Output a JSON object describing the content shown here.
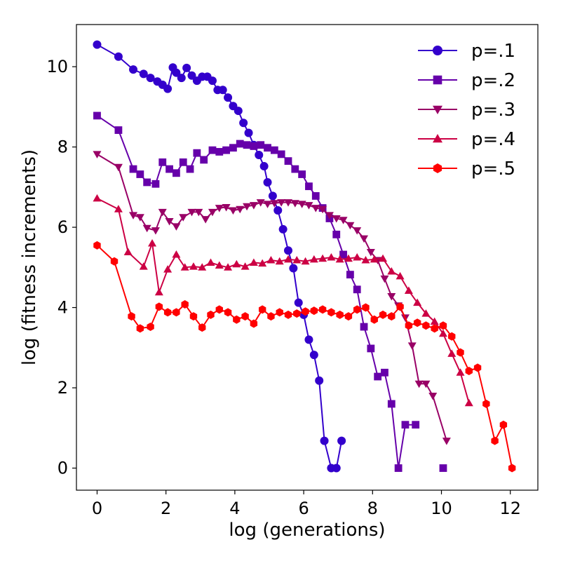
{
  "chart_data": {
    "type": "line",
    "xlabel": "log (generations)",
    "ylabel": "log (fitness increments)",
    "xlim": [
      -0.6,
      12.8
    ],
    "ylim": [
      -0.55,
      11.05
    ],
    "xticks": [
      0,
      2,
      4,
      6,
      8,
      10,
      12
    ],
    "yticks": [
      0,
      2,
      4,
      6,
      8,
      10
    ],
    "grid": false,
    "legend_position": "top-right",
    "series": [
      {
        "name": "p=.1",
        "color": "#3300cc",
        "marker": "circle",
        "x": [
          0,
          0.62,
          1.05,
          1.35,
          1.55,
          1.75,
          1.9,
          2.05,
          2.2,
          2.3,
          2.45,
          2.6,
          2.75,
          2.9,
          3.05,
          3.2,
          3.35,
          3.5,
          3.65,
          3.8,
          3.95,
          4.1,
          4.25,
          4.4,
          4.55,
          4.7,
          4.85,
          4.95,
          5.1,
          5.25,
          5.4,
          5.55,
          5.7,
          5.85,
          6.0,
          6.15,
          6.3,
          6.45,
          6.6,
          6.8,
          6.95,
          7.1,
          7.25
        ],
        "y": [
          10.55,
          10.25,
          9.93,
          9.82,
          9.72,
          9.63,
          9.55,
          9.45,
          9.98,
          9.85,
          9.72,
          9.97,
          9.78,
          9.65,
          9.75,
          9.75,
          9.65,
          9.42,
          9.42,
          9.23,
          9.02,
          8.9,
          8.6,
          8.35,
          8.05,
          7.8,
          7.52,
          7.12,
          6.78,
          6.42,
          5.95,
          5.42,
          4.98,
          4.12,
          3.82,
          3.2,
          2.82,
          2.18,
          0.68,
          0.0,
          0.0,
          0.68,
          null
        ],
        "note": ""
      },
      {
        "name": "p=.2",
        "color": "#6600aa",
        "marker": "square",
        "x": [
          0,
          0.62,
          1.05,
          1.25,
          1.45,
          1.7,
          1.9,
          2.1,
          2.3,
          2.5,
          2.7,
          2.9,
          3.1,
          3.35,
          3.55,
          3.75,
          3.95,
          4.15,
          4.35,
          4.55,
          4.75,
          4.95,
          5.15,
          5.35,
          5.55,
          5.75,
          5.95,
          6.15,
          6.35,
          6.55,
          6.75,
          6.95,
          7.15,
          7.35,
          7.55,
          7.75,
          7.95,
          8.15,
          8.35,
          8.55,
          8.75,
          8.95,
          9.25,
          9.45,
          9.65,
          9.85,
          10.05
        ],
        "y": [
          8.78,
          8.42,
          7.45,
          7.32,
          7.12,
          7.08,
          7.62,
          7.45,
          7.35,
          7.62,
          7.45,
          7.85,
          7.68,
          7.92,
          7.88,
          7.92,
          7.98,
          8.08,
          8.05,
          8.02,
          8.05,
          7.98,
          7.92,
          7.82,
          7.65,
          7.45,
          7.32,
          7.02,
          6.78,
          6.48,
          6.22,
          5.82,
          5.32,
          4.82,
          4.45,
          3.52,
          2.98,
          2.28,
          2.38,
          1.6,
          0.0,
          1.08,
          1.08,
          null,
          null,
          null,
          0.0
        ],
        "note": ""
      },
      {
        "name": "p=.3",
        "color": "#990066",
        "marker": "triangle-down",
        "x": [
          0,
          0.62,
          1.05,
          1.25,
          1.45,
          1.7,
          1.9,
          2.1,
          2.3,
          2.5,
          2.75,
          2.95,
          3.15,
          3.35,
          3.55,
          3.75,
          3.95,
          4.15,
          4.35,
          4.55,
          4.75,
          4.95,
          5.15,
          5.35,
          5.55,
          5.75,
          5.95,
          6.15,
          6.35,
          6.55,
          6.75,
          6.95,
          7.15,
          7.35,
          7.55,
          7.75,
          7.95,
          8.15,
          8.35,
          8.55,
          8.75,
          8.95,
          9.15,
          9.35,
          9.55,
          9.75,
          10.15
        ],
        "y": [
          7.82,
          7.5,
          6.3,
          6.25,
          5.98,
          5.92,
          6.38,
          6.15,
          6.02,
          6.25,
          6.38,
          6.38,
          6.2,
          6.38,
          6.48,
          6.5,
          6.42,
          6.45,
          6.52,
          6.55,
          6.62,
          6.58,
          6.6,
          6.62,
          6.62,
          6.6,
          6.58,
          6.55,
          6.48,
          6.45,
          6.3,
          6.22,
          6.18,
          6.05,
          5.92,
          5.72,
          5.38,
          5.18,
          4.72,
          4.28,
          4.05,
          3.75,
          3.05,
          2.1,
          2.1,
          1.8,
          0.68
        ],
        "note": ""
      },
      {
        "name": "p=.4",
        "color": "#cc0044",
        "marker": "triangle-up",
        "x": [
          0,
          0.62,
          0.9,
          1.35,
          1.6,
          1.8,
          2.05,
          2.3,
          2.55,
          2.8,
          3.05,
          3.3,
          3.55,
          3.8,
          4.05,
          4.3,
          4.55,
          4.8,
          5.05,
          5.3,
          5.55,
          5.8,
          6.05,
          6.3,
          6.55,
          6.8,
          7.05,
          7.3,
          7.55,
          7.8,
          8.05,
          8.3,
          8.55,
          8.8,
          9.05,
          9.3,
          9.55,
          9.8,
          10.05,
          10.3,
          10.55,
          10.8
        ],
        "y": [
          6.72,
          6.45,
          5.38,
          5.02,
          5.6,
          4.38,
          4.95,
          5.32,
          5.0,
          5.02,
          5.0,
          5.12,
          5.05,
          5.0,
          5.08,
          5.02,
          5.12,
          5.1,
          5.18,
          5.15,
          5.2,
          5.18,
          5.15,
          5.2,
          5.22,
          5.25,
          5.2,
          5.22,
          5.25,
          5.18,
          5.2,
          5.22,
          4.9,
          4.78,
          4.42,
          4.12,
          3.85,
          3.65,
          3.35,
          2.85,
          2.38,
          1.62
        ],
        "note": ""
      },
      {
        "name": "p=.5",
        "color": "#ff0000",
        "marker": "hexagon",
        "x": [
          0,
          0.5,
          1.0,
          1.25,
          1.55,
          1.8,
          2.05,
          2.3,
          2.55,
          2.8,
          3.05,
          3.3,
          3.55,
          3.8,
          4.05,
          4.3,
          4.55,
          4.8,
          5.05,
          5.3,
          5.55,
          5.8,
          6.05,
          6.3,
          6.55,
          6.8,
          7.05,
          7.3,
          7.55,
          7.8,
          8.05,
          8.3,
          8.55,
          8.8,
          9.05,
          9.3,
          9.55,
          9.8,
          10.05,
          10.3,
          10.55,
          10.8,
          11.05,
          11.3,
          11.55,
          11.8,
          12.05
        ],
        "y": [
          5.55,
          5.15,
          3.78,
          3.48,
          3.52,
          4.02,
          3.88,
          3.88,
          4.08,
          3.78,
          3.5,
          3.82,
          3.95,
          3.88,
          3.7,
          3.78,
          3.6,
          3.95,
          3.78,
          3.88,
          3.82,
          3.85,
          3.9,
          3.92,
          3.95,
          3.88,
          3.82,
          3.78,
          3.95,
          4.0,
          3.7,
          3.82,
          3.78,
          4.02,
          3.55,
          3.62,
          3.55,
          3.48,
          3.55,
          3.28,
          2.88,
          2.42,
          2.5,
          1.6,
          0.68,
          1.08,
          0.0
        ],
        "note": ""
      }
    ]
  }
}
